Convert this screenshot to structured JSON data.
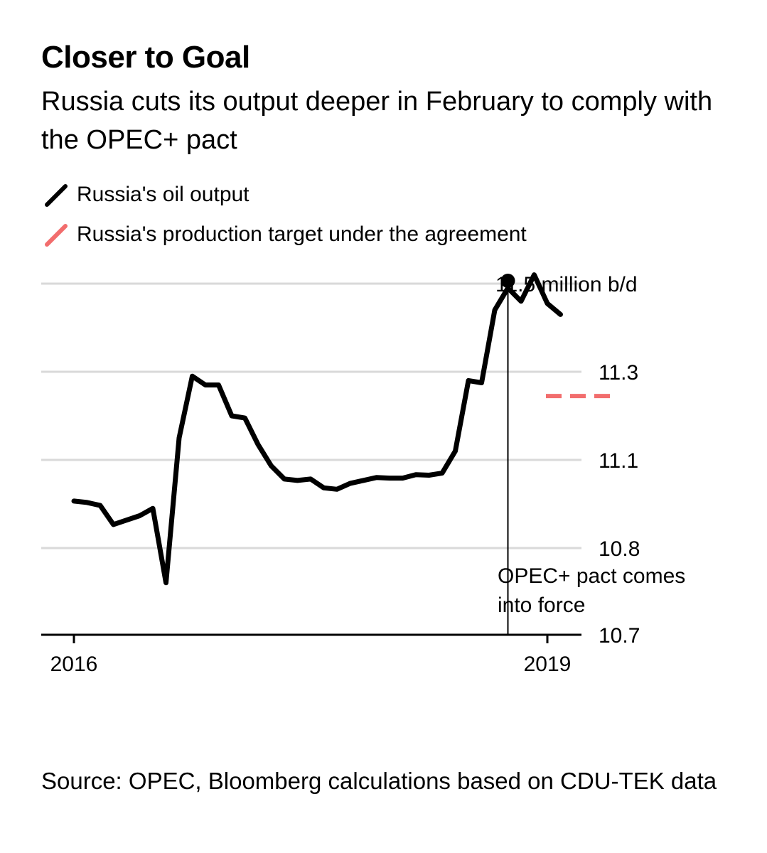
{
  "header": {
    "title": "Closer to Goal",
    "subtitle": "Russia cuts its output deeper in February to comply with the OPEC+ pact"
  },
  "legend": {
    "items": [
      {
        "label": "Russia's oil output",
        "color": "#000000"
      },
      {
        "label": "Russia's production target under the agreement",
        "color": "#f26d6d"
      }
    ]
  },
  "chart_data": {
    "type": "line",
    "title": "Closer to Goal",
    "subtitle": "Russia cuts its output deeper in February to comply with the OPEC+ pact",
    "xlabel": "",
    "ylabel": "",
    "x_ticks": [
      "2016",
      "2019"
    ],
    "y_ticks": [
      10.7,
      10.8,
      11.1,
      11.3
    ],
    "y_tick_labels": [
      "10.7",
      "10.8",
      "11.1",
      "11.3"
    ],
    "ylim": [
      10.7,
      11.5
    ],
    "grid": true,
    "series": [
      {
        "name": "Russia's oil output",
        "color": "#000000",
        "start": "2016-01",
        "frequency": "monthly",
        "values": [
          10.96,
          10.955,
          10.945,
          10.88,
          10.895,
          10.91,
          10.935,
          10.76,
          11.15,
          11.29,
          11.27,
          11.27,
          11.2,
          11.195,
          11.135,
          11.08,
          11.035,
          11.03,
          11.035,
          11.005,
          11.0,
          11.02,
          11.03,
          11.04,
          11.038,
          11.038,
          11.05,
          11.048,
          11.055,
          11.12,
          11.28,
          11.275,
          11.44,
          11.49,
          11.46,
          11.52,
          11.455,
          11.43
        ]
      },
      {
        "name": "Russia's production target under the agreement",
        "color": "#f26d6d",
        "style": "dashed",
        "start": "2019-01",
        "end": "2019-06",
        "value": 11.245
      }
    ],
    "annotations": [
      {
        "label": "11.5 million b/d",
        "date": "2018-10",
        "value": 11.5
      },
      {
        "label": "OPEC+ pact comes into force",
        "date": "2018-10"
      }
    ]
  },
  "footer": {
    "source": "Source: OPEC, Bloomberg calculations based on CDU-TEK data"
  }
}
